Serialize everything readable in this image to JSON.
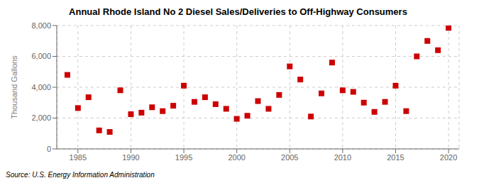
{
  "chart_data": {
    "type": "scatter",
    "title": "Annual Rhode Island No 2 Diesel Sales/Deliveries to Off-Highway Consumers",
    "y_label": "Thousand Gallons",
    "annotations": [
      "Source: U.S. Energy Information Administration"
    ],
    "x": [
      1984,
      1985,
      1986,
      1987,
      1988,
      1989,
      1990,
      1991,
      1992,
      1993,
      1994,
      1995,
      1996,
      1997,
      1998,
      1999,
      2000,
      2001,
      2002,
      2003,
      2004,
      2005,
      2006,
      2007,
      2008,
      2009,
      2010,
      2011,
      2012,
      2013,
      2014,
      2015,
      2016,
      2017,
      2018,
      2019,
      2020
    ],
    "values": [
      4800,
      2650,
      3350,
      1200,
      1100,
      3800,
      2250,
      2350,
      2700,
      2450,
      2800,
      4100,
      3050,
      3350,
      2900,
      2600,
      1950,
      2150,
      3100,
      2600,
      3500,
      5350,
      4500,
      2100,
      3600,
      5600,
      3800,
      3700,
      3000,
      2400,
      3050,
      4100,
      2450,
      6000,
      7000,
      6400,
      7850
    ],
    "color": "#cc0000",
    "marker": "square",
    "xlim": [
      1983,
      2021
    ],
    "xticks": [
      1985,
      1990,
      1995,
      2000,
      2005,
      2010,
      2015,
      2020
    ],
    "ylim": [
      0,
      8000
    ],
    "yticks": [
      0,
      {
        "value": 2000,
        "label": "2,000"
      },
      {
        "value": 4000,
        "label": "4,000"
      },
      {
        "value": 6000,
        "label": "6,000"
      },
      {
        "value": 8000,
        "label": "8,000"
      }
    ],
    "grid": true
  }
}
